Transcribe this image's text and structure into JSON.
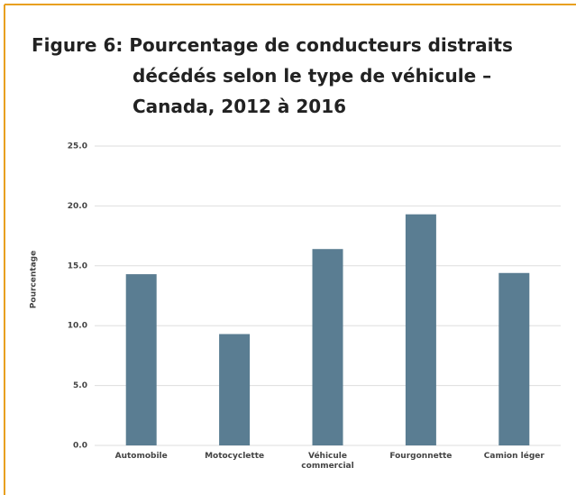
{
  "chart_data": {
    "type": "bar",
    "title": [
      "Figure 6: Pourcentage de conducteurs distraits",
      "décédés selon le type de véhicule –",
      "Canada, 2012 à 2016"
    ],
    "y_label": "Pourcentage",
    "categories": [
      "Automobile",
      "Motocyclette",
      "Véhicule commercial",
      "Fourgonnette",
      "Camion léger"
    ],
    "values": [
      14.3,
      9.3,
      16.4,
      19.3,
      14.4
    ],
    "color": "#5a7d92",
    "ylim": [
      0,
      25
    ],
    "yticks": [
      {
        "value": 0,
        "label": "0.0"
      },
      {
        "value": 5,
        "label": "5.0"
      },
      {
        "value": 10,
        "label": "10.0"
      },
      {
        "value": 15,
        "label": "15.0"
      },
      {
        "value": 20,
        "label": "20.0"
      },
      {
        "value": 25,
        "label": "25.0"
      }
    ],
    "grid": true
  }
}
